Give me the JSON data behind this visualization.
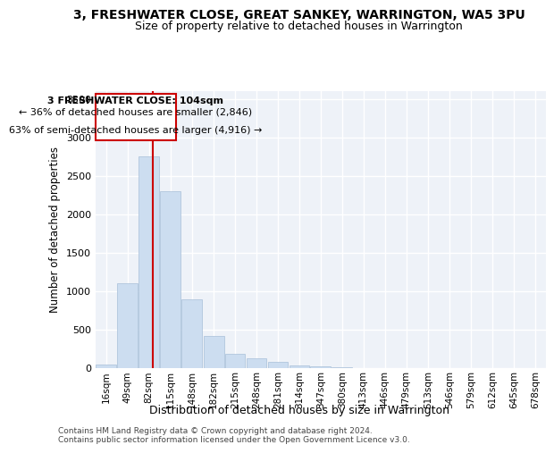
{
  "title": "3, FRESHWATER CLOSE, GREAT SANKEY, WARRINGTON, WA5 3PU",
  "subtitle": "Size of property relative to detached houses in Warrington",
  "xlabel": "Distribution of detached houses by size in Warrington",
  "ylabel": "Number of detached properties",
  "footnote1": "Contains HM Land Registry data © Crown copyright and database right 2024.",
  "footnote2": "Contains public sector information licensed under the Open Government Licence v3.0.",
  "annotation_line1": "3 FRESHWATER CLOSE: 104sqm",
  "annotation_line2": "← 36% of detached houses are smaller (2,846)",
  "annotation_line3": "63% of semi-detached houses are larger (4,916) →",
  "bar_color": "#ccddf0",
  "bar_edge_color": "#a8bfd8",
  "vline_color": "#cc0000",
  "vline_x": 104,
  "categories": [
    "16sqm",
    "49sqm",
    "82sqm",
    "115sqm",
    "148sqm",
    "182sqm",
    "215sqm",
    "248sqm",
    "281sqm",
    "314sqm",
    "347sqm",
    "380sqm",
    "413sqm",
    "446sqm",
    "479sqm",
    "513sqm",
    "546sqm",
    "579sqm",
    "612sqm",
    "645sqm",
    "678sqm"
  ],
  "bin_edges": [
    16,
    49,
    82,
    115,
    148,
    182,
    215,
    248,
    281,
    314,
    347,
    380,
    413,
    446,
    479,
    513,
    546,
    579,
    612,
    645,
    678
  ],
  "bin_width": 33,
  "values": [
    50,
    1100,
    2750,
    2300,
    900,
    420,
    190,
    130,
    80,
    40,
    20,
    10,
    5,
    5,
    3,
    2,
    1,
    1,
    1,
    0,
    0
  ],
  "ylim": [
    0,
    3600
  ],
  "yticks": [
    0,
    500,
    1000,
    1500,
    2000,
    2500,
    3000,
    3500
  ],
  "background_color": "#eef2f8",
  "grid_color": "#ffffff",
  "annotation_box_color": "#cc0000",
  "annotation_bg": "white"
}
